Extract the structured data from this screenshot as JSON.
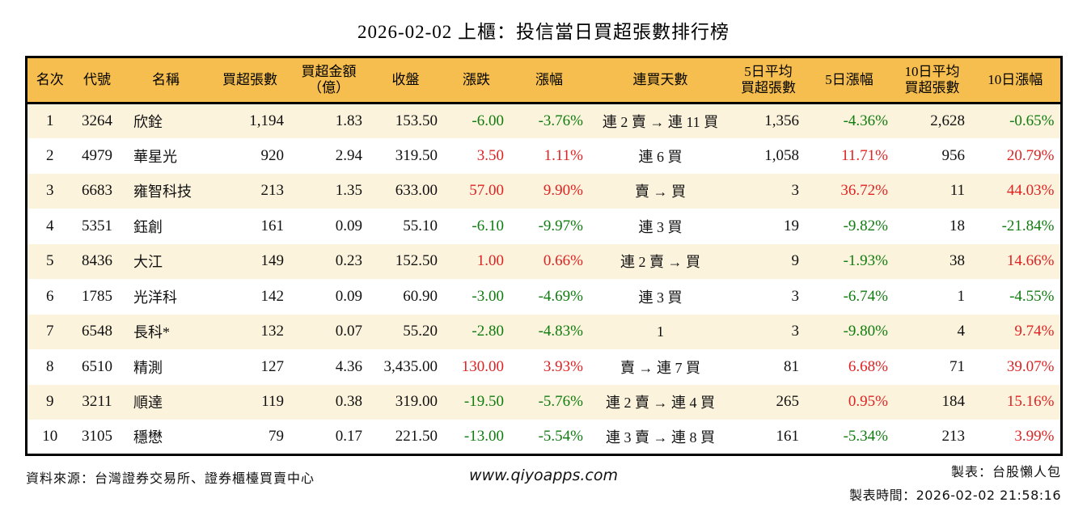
{
  "page": {
    "title": "2026-02-02 上櫃：投信當日買超張數排行榜",
    "footer": {
      "source": "資料來源：台灣證券交易所、證券櫃檯買賣中心",
      "website": "www.qiyoapps.com",
      "author": "製表：台股懶人包",
      "generated_at": "製表時間：2026-02-02 21:58:16"
    }
  },
  "colors": {
    "header_bg": "#F5BE4E",
    "row_odd_bg": "#FCF3DD",
    "row_even_bg": "#FFFFFF",
    "gain_red": "#DE2323",
    "loss_green": "#107C10",
    "border": "#000000"
  },
  "chart_data": {
    "type": "table",
    "title": "2026-02-02 上櫃：投信當日買超張數排行榜",
    "columns": [
      "名次",
      "代號",
      "名稱",
      "買超張數",
      "買超金額（億）",
      "收盤",
      "漲跌",
      "漲幅",
      "連買天數",
      "5日平均買超張數",
      "5日漲幅",
      "10日平均買超張數",
      "10日漲幅"
    ],
    "header_labels": [
      "名次",
      "代號",
      "名稱",
      "買超張數",
      "買超金額\n（億）",
      "收盤",
      "漲跌",
      "漲幅",
      "連買天數",
      "5日平均\n買超張數",
      "5日漲幅",
      "10日平均\n買超張數",
      "10日漲幅"
    ],
    "rows": [
      {
        "rank": "1",
        "code": "3264",
        "name": "欣銓",
        "net_buy": "1,194",
        "amount": "1.83",
        "close": "153.50",
        "change": "-6.00",
        "change_dir": "down",
        "pct": "-3.76%",
        "pct_dir": "down",
        "streak": "連 2 賣 → 連 11 買",
        "avg5": "1,356",
        "pct5": "-4.36%",
        "pct5_dir": "down",
        "avg10": "2,628",
        "pct10": "-0.65%",
        "pct10_dir": "down"
      },
      {
        "rank": "2",
        "code": "4979",
        "name": "華星光",
        "net_buy": "920",
        "amount": "2.94",
        "close": "319.50",
        "change": "3.50",
        "change_dir": "up",
        "pct": "1.11%",
        "pct_dir": "up",
        "streak": "連 6 買",
        "avg5": "1,058",
        "pct5": "11.71%",
        "pct5_dir": "up",
        "avg10": "956",
        "pct10": "20.79%",
        "pct10_dir": "up"
      },
      {
        "rank": "3",
        "code": "6683",
        "name": "雍智科技",
        "net_buy": "213",
        "amount": "1.35",
        "close": "633.00",
        "change": "57.00",
        "change_dir": "up",
        "pct": "9.90%",
        "pct_dir": "up",
        "streak": "賣 → 買",
        "avg5": "3",
        "pct5": "36.72%",
        "pct5_dir": "up",
        "avg10": "11",
        "pct10": "44.03%",
        "pct10_dir": "up"
      },
      {
        "rank": "4",
        "code": "5351",
        "name": "鈺創",
        "net_buy": "161",
        "amount": "0.09",
        "close": "55.10",
        "change": "-6.10",
        "change_dir": "down",
        "pct": "-9.97%",
        "pct_dir": "down",
        "streak": "連 3 買",
        "avg5": "19",
        "pct5": "-9.82%",
        "pct5_dir": "down",
        "avg10": "18",
        "pct10": "-21.84%",
        "pct10_dir": "down"
      },
      {
        "rank": "5",
        "code": "8436",
        "name": "大江",
        "net_buy": "149",
        "amount": "0.23",
        "close": "152.50",
        "change": "1.00",
        "change_dir": "up",
        "pct": "0.66%",
        "pct_dir": "up",
        "streak": "連 2 賣 → 買",
        "avg5": "9",
        "pct5": "-1.93%",
        "pct5_dir": "down",
        "avg10": "38",
        "pct10": "14.66%",
        "pct10_dir": "up"
      },
      {
        "rank": "6",
        "code": "1785",
        "name": "光洋科",
        "net_buy": "142",
        "amount": "0.09",
        "close": "60.90",
        "change": "-3.00",
        "change_dir": "down",
        "pct": "-4.69%",
        "pct_dir": "down",
        "streak": "連 3 買",
        "avg5": "3",
        "pct5": "-6.74%",
        "pct5_dir": "down",
        "avg10": "1",
        "pct10": "-4.55%",
        "pct10_dir": "down"
      },
      {
        "rank": "7",
        "code": "6548",
        "name": "長科*",
        "net_buy": "132",
        "amount": "0.07",
        "close": "55.20",
        "change": "-2.80",
        "change_dir": "down",
        "pct": "-4.83%",
        "pct_dir": "down",
        "streak": "1",
        "avg5": "3",
        "pct5": "-9.80%",
        "pct5_dir": "down",
        "avg10": "4",
        "pct10": "9.74%",
        "pct10_dir": "up"
      },
      {
        "rank": "8",
        "code": "6510",
        "name": "精測",
        "net_buy": "127",
        "amount": "4.36",
        "close": "3,435.00",
        "change": "130.00",
        "change_dir": "up",
        "pct": "3.93%",
        "pct_dir": "up",
        "streak": "賣 → 連 7 買",
        "avg5": "81",
        "pct5": "6.68%",
        "pct5_dir": "up",
        "avg10": "71",
        "pct10": "39.07%",
        "pct10_dir": "up"
      },
      {
        "rank": "9",
        "code": "3211",
        "name": "順達",
        "net_buy": "119",
        "amount": "0.38",
        "close": "319.00",
        "change": "-19.50",
        "change_dir": "down",
        "pct": "-5.76%",
        "pct_dir": "down",
        "streak": "連 2 賣 → 連 4 買",
        "avg5": "265",
        "pct5": "0.95%",
        "pct5_dir": "up",
        "avg10": "184",
        "pct10": "15.16%",
        "pct10_dir": "up"
      },
      {
        "rank": "10",
        "code": "3105",
        "name": "穩懋",
        "net_buy": "79",
        "amount": "0.17",
        "close": "221.50",
        "change": "-13.00",
        "change_dir": "down",
        "pct": "-5.54%",
        "pct_dir": "down",
        "streak": "連 3 賣 → 連 8 買",
        "avg5": "161",
        "pct5": "-5.34%",
        "pct5_dir": "down",
        "avg10": "213",
        "pct10": "3.99%",
        "pct10_dir": "up"
      }
    ]
  }
}
